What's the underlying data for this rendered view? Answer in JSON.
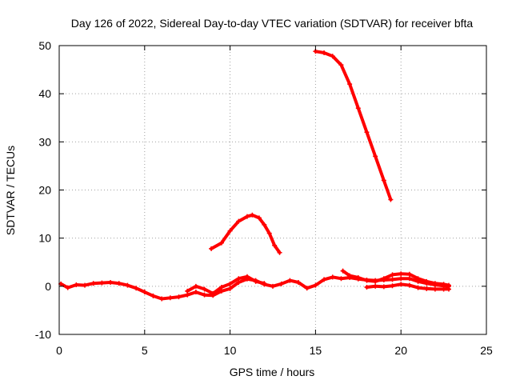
{
  "chart_data": {
    "type": "scatter",
    "title": "Day 126 of 2022, Sidereal Day-to-day VTEC variation (SDTVAR) for receiver bfta",
    "xlabel": "GPS time / hours",
    "ylabel": "SDTVAR / TECUs",
    "xlim": [
      0,
      25
    ],
    "ylim": [
      -10,
      50
    ],
    "xticks": [
      0,
      5,
      10,
      15,
      20,
      25
    ],
    "yticks": [
      -10,
      0,
      10,
      20,
      30,
      40,
      50
    ],
    "xtick_labels": [
      "0",
      "5",
      "10",
      "15",
      "20",
      "25"
    ],
    "ytick_labels": [
      "-10",
      "0",
      "10",
      "20",
      "30",
      "40",
      "50"
    ],
    "grid": true,
    "marker_color": "#ff0000",
    "series": [
      {
        "name": "main",
        "points": [
          [
            0.1,
            0.5
          ],
          [
            0.5,
            -0.3
          ],
          [
            1.0,
            0.3
          ],
          [
            1.5,
            0.2
          ],
          [
            2.0,
            0.6
          ],
          [
            2.5,
            0.7
          ],
          [
            3.0,
            0.8
          ],
          [
            3.5,
            0.6
          ],
          [
            4.0,
            0.2
          ],
          [
            4.5,
            -0.4
          ],
          [
            5.0,
            -1.2
          ],
          [
            5.5,
            -2.0
          ],
          [
            6.0,
            -2.6
          ],
          [
            6.5,
            -2.4
          ],
          [
            7.0,
            -2.2
          ],
          [
            7.5,
            -1.8
          ],
          [
            8.0,
            -1.2
          ],
          [
            8.5,
            -1.8
          ],
          [
            9.0,
            -1.9
          ],
          [
            9.5,
            -1.0
          ],
          [
            10.0,
            -0.5
          ],
          [
            10.5,
            0.8
          ],
          [
            11.0,
            1.5
          ],
          [
            11.5,
            1.2
          ],
          [
            12.0,
            0.4
          ],
          [
            12.5,
            0.0
          ],
          [
            13.0,
            0.5
          ],
          [
            13.5,
            1.2
          ],
          [
            14.0,
            0.8
          ],
          [
            14.5,
            -0.4
          ],
          [
            15.0,
            0.2
          ],
          [
            15.5,
            1.4
          ],
          [
            16.0,
            1.9
          ],
          [
            16.5,
            1.6
          ],
          [
            17.0,
            1.8
          ],
          [
            17.5,
            1.5
          ],
          [
            18.0,
            1.3
          ],
          [
            18.5,
            1.2
          ],
          [
            19.0,
            1.3
          ],
          [
            19.5,
            1.4
          ],
          [
            20.0,
            1.6
          ],
          [
            20.5,
            1.6
          ],
          [
            21.0,
            1.0
          ],
          [
            21.5,
            0.6
          ],
          [
            22.0,
            0.3
          ],
          [
            22.5,
            0.1
          ],
          [
            22.8,
            0.0
          ]
        ]
      },
      {
        "name": "lower-branch",
        "points": [
          [
            7.5,
            -1.0
          ],
          [
            8.0,
            0.0
          ],
          [
            8.5,
            -0.6
          ],
          [
            9.0,
            -1.5
          ],
          [
            9.5,
            -0.2
          ],
          [
            10.0,
            0.5
          ],
          [
            10.5,
            1.6
          ],
          [
            11.0,
            2.0
          ],
          [
            11.5,
            1.0
          ],
          [
            12.0,
            0.6
          ]
        ]
      },
      {
        "name": "late-upper",
        "points": [
          [
            16.6,
            3.2
          ],
          [
            17.0,
            2.2
          ],
          [
            17.5,
            1.8
          ],
          [
            18.0,
            1.2
          ],
          [
            18.5,
            1.0
          ],
          [
            19.0,
            1.6
          ],
          [
            19.5,
            2.4
          ],
          [
            20.0,
            2.6
          ],
          [
            20.5,
            2.5
          ],
          [
            21.0,
            1.6
          ],
          [
            21.5,
            1.0
          ],
          [
            22.0,
            0.6
          ],
          [
            22.5,
            0.4
          ],
          [
            22.8,
            0.2
          ]
        ]
      },
      {
        "name": "late-lower",
        "points": [
          [
            18.0,
            -0.2
          ],
          [
            18.5,
            0.0
          ],
          [
            19.0,
            -0.1
          ],
          [
            19.5,
            0.1
          ],
          [
            20.0,
            0.4
          ],
          [
            20.5,
            0.2
          ],
          [
            21.0,
            -0.3
          ],
          [
            21.5,
            -0.5
          ],
          [
            22.0,
            -0.6
          ],
          [
            22.5,
            -0.6
          ],
          [
            22.8,
            -0.6
          ]
        ]
      },
      {
        "name": "hump",
        "points": [
          [
            8.9,
            7.8
          ],
          [
            9.5,
            9.0
          ],
          [
            10.0,
            11.5
          ],
          [
            10.5,
            13.5
          ],
          [
            11.0,
            14.5
          ],
          [
            11.3,
            14.8
          ],
          [
            11.7,
            14.2
          ],
          [
            12.0,
            12.8
          ],
          [
            12.3,
            11.0
          ],
          [
            12.6,
            8.5
          ],
          [
            12.9,
            7.0
          ]
        ]
      },
      {
        "name": "descent",
        "points": [
          [
            15.0,
            48.8
          ],
          [
            15.5,
            48.5
          ],
          [
            16.0,
            47.8
          ],
          [
            16.5,
            46.0
          ],
          [
            17.0,
            42.0
          ],
          [
            17.5,
            37.0
          ],
          [
            18.0,
            32.0
          ],
          [
            18.5,
            27.0
          ],
          [
            19.0,
            22.0
          ],
          [
            19.4,
            18.0
          ]
        ]
      }
    ]
  }
}
